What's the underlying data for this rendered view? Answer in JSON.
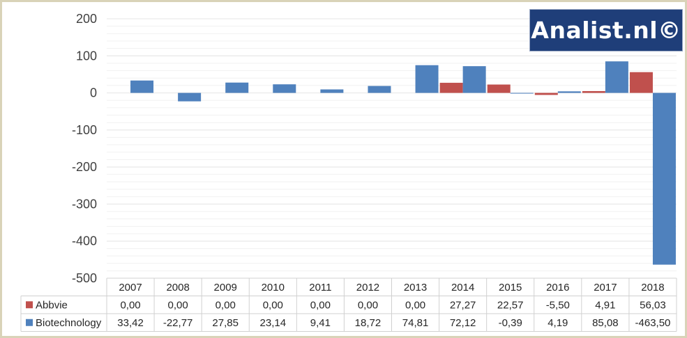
{
  "brand": {
    "logo_text": "Analist.nl©"
  },
  "colors": {
    "abbvie": "#c0504d",
    "biotech": "#4f81bd",
    "grid": "#e6e6e6",
    "table_line": "#d0d0d0"
  },
  "chart_data": {
    "type": "bar",
    "title": "",
    "xlabel": "",
    "ylabel": "",
    "ylim": [
      -500,
      200
    ],
    "yticks": [
      200,
      100,
      0,
      -100,
      -200,
      -300,
      -400,
      -500
    ],
    "minor_grid_step": 20,
    "legend": "data-table",
    "categories": [
      "2007",
      "2008",
      "2009",
      "2010",
      "2011",
      "2012",
      "2013",
      "2014",
      "2015",
      "2016",
      "2017",
      "2018"
    ],
    "series": [
      {
        "name": "Abbvie",
        "values": [
          0.0,
          0.0,
          0.0,
          0.0,
          0.0,
          0.0,
          0.0,
          27.27,
          22.57,
          -5.5,
          4.91,
          56.03
        ],
        "labels": [
          "0,00",
          "0,00",
          "0,00",
          "0,00",
          "0,00",
          "0,00",
          "0,00",
          "27,27",
          "22,57",
          "-5,50",
          "4,91",
          "56,03"
        ]
      },
      {
        "name": "Biotechnology",
        "values": [
          33.42,
          -22.77,
          27.85,
          23.14,
          9.41,
          18.72,
          74.81,
          72.12,
          -0.39,
          4.19,
          85.08,
          -463.5
        ],
        "labels": [
          "33,42",
          "-22,77",
          "27,85",
          "23,14",
          "9,41",
          "18,72",
          "74,81",
          "72,12",
          "-0,39",
          "4,19",
          "85,08",
          "-463,50"
        ]
      }
    ]
  }
}
